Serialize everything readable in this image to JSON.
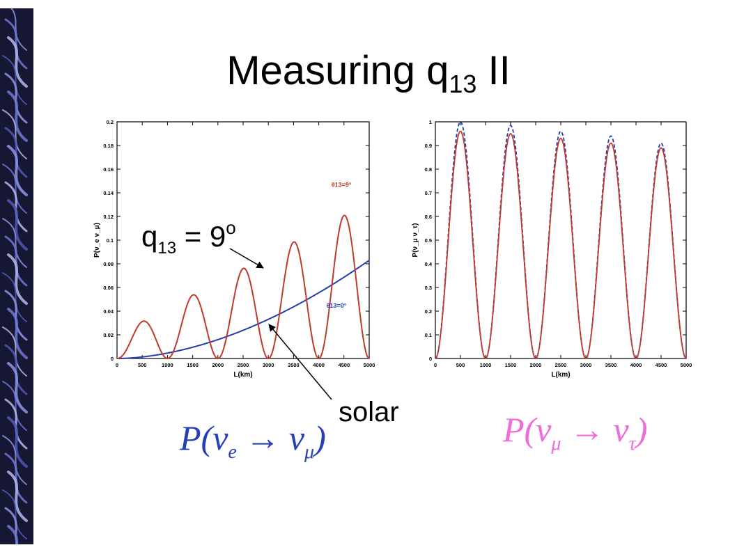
{
  "title": {
    "main": "Measuring q",
    "sub": "13",
    "tail": " II"
  },
  "annotations": {
    "theta": {
      "main": "q",
      "sub": "13",
      "eq": " = 9",
      "sup": "o"
    },
    "solar": "solar"
  },
  "formulas": {
    "left": {
      "p": "P(ν",
      "sub1": "e",
      "arrow": " → ν",
      "sub2": "μ",
      "close": ")"
    },
    "right": {
      "p": "P(ν",
      "sub1": "μ",
      "arrow": " → ν",
      "sub2": "τ",
      "close": ")"
    }
  },
  "colors": {
    "red": "#c0392b",
    "blue": "#1f3fb0",
    "strip": "#1b1c3a",
    "formula_left": "#2340b8",
    "formula_right": "#f06ad8"
  },
  "chart_data": [
    {
      "type": "line",
      "xlabel": "L(km)",
      "ylabel": "P(ν_e ν_μ)",
      "xlim": [
        0,
        5000
      ],
      "ylim": [
        0,
        0.2
      ],
      "xticks": [
        0,
        500,
        1000,
        1500,
        2000,
        2500,
        3000,
        3500,
        4000,
        4500,
        5000
      ],
      "yticks": [
        0,
        0.02,
        0.04,
        0.06,
        0.08,
        0.1,
        0.12,
        0.14,
        0.16,
        0.18,
        0.2
      ],
      "series": [
        {
          "name": "θ13=9°",
          "color": "red",
          "kind": "oscillation",
          "period": 1000,
          "base_amp": 0.02,
          "amp_growth": 0.0224
        },
        {
          "name": "θ13=0°",
          "color": "blue",
          "kind": "solar",
          "ymax_at_5000": 0.083
        }
      ],
      "legend_labels": [
        "θ13=9°",
        "θ13=0°"
      ]
    },
    {
      "type": "line",
      "xlabel": "L(km)",
      "ylabel": "P(ν_μ ν_τ)",
      "xlim": [
        0,
        5000
      ],
      "ylim": [
        0,
        1
      ],
      "xticks": [
        0,
        500,
        1000,
        1500,
        2000,
        2500,
        3000,
        3500,
        4000,
        4500,
        5000
      ],
      "yticks": [
        0,
        0.1,
        0.2,
        0.3,
        0.4,
        0.5,
        0.6,
        0.7,
        0.8,
        0.9,
        1
      ],
      "series": [
        {
          "name": "blue",
          "color": "blue",
          "period": 1000,
          "peaks": [
            1.0,
            0.985,
            0.96,
            0.94,
            0.91
          ],
          "floor": 0
        },
        {
          "name": "red",
          "color": "red",
          "period": 1000,
          "peaks": [
            0.96,
            0.95,
            0.93,
            0.91,
            0.89
          ],
          "floor": 0
        }
      ]
    }
  ]
}
